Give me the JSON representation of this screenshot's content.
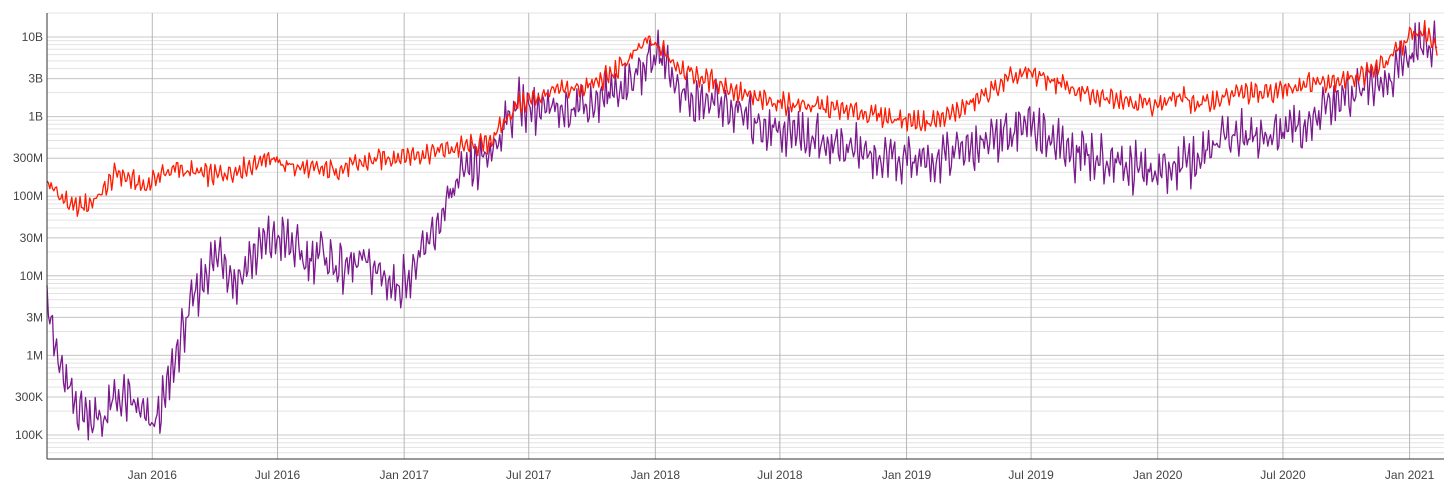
{
  "chart_data": {
    "type": "line",
    "title": "",
    "xlabel": "",
    "ylabel": "",
    "scale_y": "log",
    "grid": "on",
    "legend": "none",
    "xlim": [
      "2015-08-01",
      "2021-02-20"
    ],
    "ylim": [
      50000,
      20000000000
    ],
    "y_ticks": [
      {
        "value": 10000000000,
        "label": "10B"
      },
      {
        "value": 3000000000,
        "label": "3B"
      },
      {
        "value": 1000000000,
        "label": "1B"
      },
      {
        "value": 300000000,
        "label": "300M"
      },
      {
        "value": 100000000,
        "label": "100M"
      },
      {
        "value": 30000000,
        "label": "30M"
      },
      {
        "value": 10000000,
        "label": "10M"
      },
      {
        "value": 3000000,
        "label": "3M"
      },
      {
        "value": 1000000,
        "label": "1M"
      },
      {
        "value": 300000,
        "label": "300K"
      },
      {
        "value": 100000,
        "label": "100K"
      }
    ],
    "x_ticks": [
      {
        "value": "2016-01-01",
        "label": "Jan 2016"
      },
      {
        "value": "2016-07-01",
        "label": "Jul 2016"
      },
      {
        "value": "2017-01-01",
        "label": "Jan 2017"
      },
      {
        "value": "2017-07-01",
        "label": "Jul 2017"
      },
      {
        "value": "2018-01-01",
        "label": "Jan 2018"
      },
      {
        "value": "2018-07-01",
        "label": "Jul 2018"
      },
      {
        "value": "2019-01-01",
        "label": "Jan 2019"
      },
      {
        "value": "2019-07-01",
        "label": "Jul 2019"
      },
      {
        "value": "2020-01-01",
        "label": "Jan 2020"
      },
      {
        "value": "2020-07-01",
        "label": "Jul 2020"
      },
      {
        "value": "2021-01-01",
        "label": "Jan 2021"
      }
    ],
    "series": [
      {
        "color": "#ff1a00",
        "x": [
          "2015-08-01",
          "2015-08-20",
          "2015-09-10",
          "2015-10-01",
          "2015-10-20",
          "2015-11-10",
          "2015-12-01",
          "2015-12-20",
          "2016-01-10",
          "2016-02-01",
          "2016-03-01",
          "2016-04-01",
          "2016-05-01",
          "2016-06-01",
          "2016-06-15",
          "2016-07-01",
          "2016-08-01",
          "2016-09-01",
          "2016-10-01",
          "2016-11-01",
          "2016-12-01",
          "2017-01-01",
          "2017-02-01",
          "2017-03-01",
          "2017-04-01",
          "2017-05-01",
          "2017-05-20",
          "2017-06-10",
          "2017-07-01",
          "2017-08-01",
          "2017-09-01",
          "2017-10-01",
          "2017-11-01",
          "2017-12-01",
          "2017-12-20",
          "2018-01-10",
          "2018-02-01",
          "2018-03-01",
          "2018-04-01",
          "2018-05-01",
          "2018-06-01",
          "2018-07-01",
          "2018-08-01",
          "2018-09-01",
          "2018-10-01",
          "2018-11-01",
          "2018-12-01",
          "2019-01-01",
          "2019-02-01",
          "2019-03-01",
          "2019-04-01",
          "2019-05-01",
          "2019-06-01",
          "2019-07-01",
          "2019-08-01",
          "2019-09-01",
          "2019-10-01",
          "2019-11-01",
          "2019-12-01",
          "2020-01-01",
          "2020-02-01",
          "2020-03-01",
          "2020-04-01",
          "2020-05-01",
          "2020-06-01",
          "2020-07-01",
          "2020-08-01",
          "2020-09-01",
          "2020-10-01",
          "2020-11-01",
          "2020-12-01",
          "2021-01-01",
          "2021-01-20",
          "2021-02-10"
        ],
        "values": [
          150000000,
          100000000,
          70000000,
          80000000,
          110000000,
          200000000,
          160000000,
          130000000,
          180000000,
          220000000,
          200000000,
          180000000,
          210000000,
          260000000,
          330000000,
          260000000,
          230000000,
          210000000,
          220000000,
          260000000,
          300000000,
          320000000,
          350000000,
          380000000,
          420000000,
          450000000,
          700000000,
          1300000000,
          1600000000,
          2000000000,
          2200000000,
          2500000000,
          3500000000,
          6000000000,
          9000000000,
          7000000000,
          4500000000,
          3200000000,
          2700000000,
          2000000000,
          1600000000,
          1500000000,
          1400000000,
          1300000000,
          1200000000,
          1100000000,
          1000000000,
          900000000,
          850000000,
          1000000000,
          1400000000,
          2000000000,
          3000000000,
          3500000000,
          2800000000,
          2200000000,
          1700000000,
          1800000000,
          1500000000,
          1400000000,
          1800000000,
          1400000000,
          1700000000,
          2000000000,
          1900000000,
          2200000000,
          2600000000,
          2800000000,
          3000000000,
          3500000000,
          5000000000,
          10000000000,
          12000000000,
          8000000000
        ]
      },
      {
        "color": "#7a1a8c",
        "x": [
          "2015-08-01",
          "2015-08-10",
          "2015-08-25",
          "2015-09-10",
          "2015-10-01",
          "2015-10-20",
          "2015-11-10",
          "2015-12-01",
          "2015-12-15",
          "2016-01-01",
          "2016-01-20",
          "2016-02-10",
          "2016-03-01",
          "2016-03-20",
          "2016-04-10",
          "2016-05-01",
          "2016-05-20",
          "2016-06-10",
          "2016-07-01",
          "2016-07-20",
          "2016-08-10",
          "2016-09-01",
          "2016-10-01",
          "2016-11-01",
          "2016-12-01",
          "2016-12-20",
          "2017-01-15",
          "2017-02-10",
          "2017-03-10",
          "2017-04-01",
          "2017-04-20",
          "2017-05-10",
          "2017-06-01",
          "2017-06-20",
          "2017-07-10",
          "2017-08-01",
          "2017-09-01",
          "2017-10-01",
          "2017-11-01",
          "2017-12-01",
          "2017-12-20",
          "2018-01-10",
          "2018-02-01",
          "2018-03-01",
          "2018-04-01",
          "2018-05-01",
          "2018-06-01",
          "2018-07-01",
          "2018-08-01",
          "2018-09-01",
          "2018-10-01",
          "2018-11-01",
          "2018-12-01",
          "2019-01-01",
          "2019-02-01",
          "2019-03-01",
          "2019-04-01",
          "2019-05-01",
          "2019-06-01",
          "2019-07-01",
          "2019-08-01",
          "2019-09-01",
          "2019-10-01",
          "2019-11-01",
          "2019-12-01",
          "2020-01-01",
          "2020-02-01",
          "2020-03-01",
          "2020-04-01",
          "2020-05-01",
          "2020-06-01",
          "2020-07-01",
          "2020-08-01",
          "2020-09-01",
          "2020-10-01",
          "2020-11-01",
          "2020-12-01",
          "2021-01-01",
          "2021-01-20",
          "2021-02-10"
        ],
        "values": [
          8000000,
          1500000,
          500000,
          250000,
          180000,
          150000,
          300000,
          250000,
          200000,
          120000,
          300000,
          1500000,
          5000000,
          12000000,
          20000000,
          8000000,
          15000000,
          25000000,
          30000000,
          25000000,
          15000000,
          20000000,
          12000000,
          15000000,
          10000000,
          7000000,
          12000000,
          30000000,
          100000000,
          200000000,
          250000000,
          400000000,
          1000000000,
          1500000000,
          1300000000,
          1100000000,
          1400000000,
          1500000000,
          2000000000,
          3000000000,
          5000000000,
          6000000000,
          2500000000,
          1500000000,
          1500000000,
          1100000000,
          800000000,
          700000000,
          600000000,
          500000000,
          420000000,
          350000000,
          280000000,
          280000000,
          250000000,
          320000000,
          400000000,
          550000000,
          700000000,
          800000000,
          500000000,
          320000000,
          300000000,
          280000000,
          220000000,
          200000000,
          250000000,
          300000000,
          500000000,
          600000000,
          550000000,
          600000000,
          800000000,
          1200000000,
          1800000000,
          2200000000,
          3000000000,
          6000000000,
          8000000000,
          9000000000
        ]
      }
    ]
  }
}
